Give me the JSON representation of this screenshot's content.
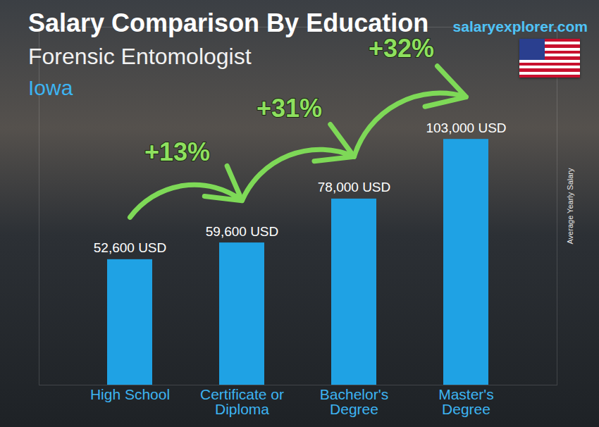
{
  "chart_data": {
    "type": "bar",
    "title": "Salary Comparison By Education",
    "subtitle": "Forensic Entomologist",
    "region": "Iowa",
    "source": "salaryexplorer.com",
    "y_label": "Average Yearly Salary",
    "categories": [
      "High School",
      "Certificate or Diploma",
      "Bachelor's Degree",
      "Master's Degree"
    ],
    "values": [
      52600,
      59600,
      78000,
      103000
    ],
    "value_labels": [
      "52,600 USD",
      "59,600 USD",
      "78,000 USD",
      "103,000 USD"
    ],
    "data_labels": true,
    "changes": [
      {
        "from": "High School",
        "to": "Certificate or Diploma",
        "label": "+13%"
      },
      {
        "from": "Certificate or Diploma",
        "to": "Bachelor's Degree",
        "label": "+31%"
      },
      {
        "from": "Bachelor's Degree",
        "to": "Master's Degree",
        "label": "+32%"
      }
    ],
    "color": "#1fa2e4",
    "ylim": [
      0,
      150000
    ],
    "yticks": [],
    "tick_labels": "x",
    "grid": false
  }
}
